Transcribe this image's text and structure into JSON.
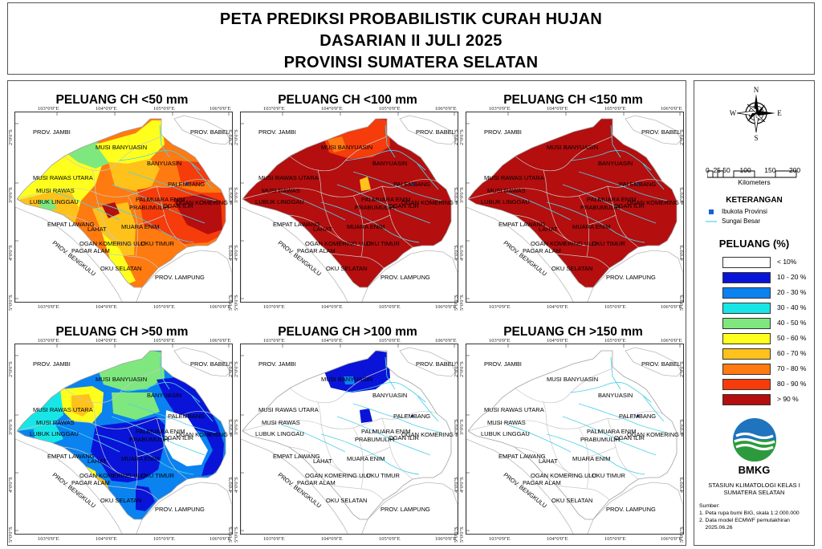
{
  "header": {
    "title_line1": "PETA PREDIKSI PROBABILISTIK CURAH HUJAN",
    "title_line2": "DASARIAN II JULI 2025",
    "title_line3": "PROVINSI SUMATERA SELATAN"
  },
  "panels": [
    {
      "title": "PELUANG CH <50 mm",
      "scheme": "lt50"
    },
    {
      "title": "PELUANG CH <100 mm",
      "scheme": "lt100"
    },
    {
      "title": "PELUANG CH <150 mm",
      "scheme": "lt150"
    },
    {
      "title": "PELUANG CH >50 mm",
      "scheme": "gt50"
    },
    {
      "title": "PELUANG CH >100 mm",
      "scheme": "gt100"
    },
    {
      "title": "PELUANG CH >150 mm",
      "scheme": "gt150"
    }
  ],
  "ticks": {
    "lon": [
      "103°0'0\"E",
      "104°0'0\"E",
      "105°0'0\"E",
      "106°0'0\"E"
    ],
    "lat": [
      "2°0'0\"S",
      "3°0'0\"S",
      "4°0'0\"S",
      "5°0'0\"S"
    ]
  },
  "places": {
    "prov_jambi": "PROV. JAMBI",
    "prov_babel": "PROV. BABEL",
    "prov_bengkulu": "PROV. BENGKULU",
    "prov_lampung": "PROV. LAMPUNG",
    "musi_banyuasin": "MUSI BANYUASIN",
    "banyuasin": "BANYUASIN",
    "musi_rawas_utara": "MUSI RAWAS UTARA",
    "musi_rawas": "MUSI RAWAS",
    "palembang": "PALEMBANG",
    "lubuk_linggau": "LUBUK LINGGAU",
    "pali": "PALI",
    "muara_enim_pali": "MUARA ENIM",
    "prabumulih": "PRABUMULIH",
    "ogan_ilir": "OGAN ILIR",
    "ogan_komering_ilir": "OGAN KOMERING ILIR",
    "empat_lawang": "EMPAT LAWANG",
    "lahat": "LAHAT",
    "muara_enim": "MUARA ENIM",
    "ogan_komering_ulu": "OGAN KOMERING ULU",
    "oku_timur": "OKU TIMUR",
    "pagar_alam": "PAGAR ALAM",
    "oku_selatan": "OKU SELATAN"
  },
  "compass": {
    "n": "N",
    "s": "S",
    "e": "E",
    "w": "W"
  },
  "scale": {
    "numbers": "0  25 50     100       150       200",
    "unit": "Kilometers"
  },
  "legend": {
    "keterangan_title": "KETERANGAN",
    "ibukota": "Ibukota Provinsi",
    "sungai": "Sungai Besar",
    "peluang_title": "PELUANG (%)",
    "classes": [
      {
        "label": "< 10%",
        "color": "#ffffff"
      },
      {
        "label": "10 - 20 %",
        "color": "#0a14d8"
      },
      {
        "label": "20 - 30 %",
        "color": "#0a82f0"
      },
      {
        "label": "30 - 40 %",
        "color": "#18e6e6"
      },
      {
        "label": "40 - 50 %",
        "color": "#7ee87e"
      },
      {
        "label": "50 - 60 %",
        "color": "#ffff1e"
      },
      {
        "label": "60 - 70 %",
        "color": "#ffc21a"
      },
      {
        "label": "70 - 80 %",
        "color": "#ff7a10"
      },
      {
        "label": "80 - 90 %",
        "color": "#f53c0a"
      },
      {
        "label": "> 90 %",
        "color": "#b40e0e"
      }
    ]
  },
  "footer": {
    "brand": "BMKG",
    "stasiun_line1": "STASIUN KLIMATOLOGI KELAS I",
    "stasiun_line2": "SUMATERA SELATAN",
    "sumber_title": "Sumber:",
    "sumber_1": "1. Peta rupa bumi BIG, skala 1:2.000.000",
    "sumber_2": "2. Data model ECMWF pemutakhiran",
    "sumber_3": "    2025.06.26"
  }
}
